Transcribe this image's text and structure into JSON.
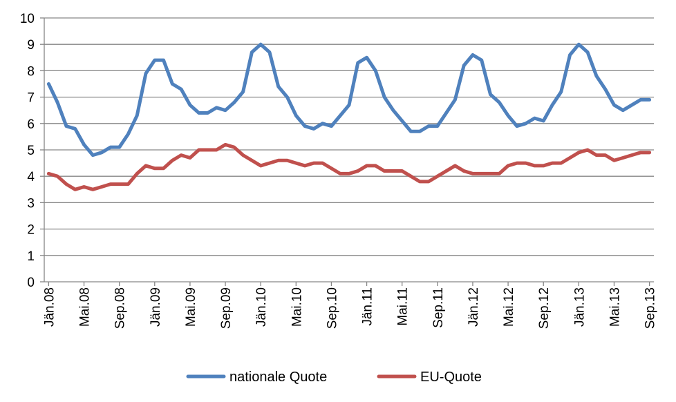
{
  "chart_data": {
    "type": "line",
    "title": "",
    "xlabel": "",
    "ylabel": "",
    "ylim": [
      0,
      10
    ],
    "yticks": [
      0,
      1,
      2,
      3,
      4,
      5,
      6,
      7,
      8,
      9,
      10
    ],
    "grid": true,
    "legend_position": "bottom",
    "x_tick_labels": [
      "Jän.08",
      "Mai.08",
      "Sep.08",
      "Jän.09",
      "Mai.09",
      "Sep.09",
      "Jän.10",
      "Mai.10",
      "Sep.10",
      "Jän.11",
      "Mai.11",
      "Sep.11",
      "Jän.12",
      "Mai.12",
      "Sep.12",
      "Jän.13",
      "Mai.13",
      "Sep.13"
    ],
    "x": [
      "2008-01",
      "2008-02",
      "2008-03",
      "2008-04",
      "2008-05",
      "2008-06",
      "2008-07",
      "2008-08",
      "2008-09",
      "2008-10",
      "2008-11",
      "2008-12",
      "2009-01",
      "2009-02",
      "2009-03",
      "2009-04",
      "2009-05",
      "2009-06",
      "2009-07",
      "2009-08",
      "2009-09",
      "2009-10",
      "2009-11",
      "2009-12",
      "2010-01",
      "2010-02",
      "2010-03",
      "2010-04",
      "2010-05",
      "2010-06",
      "2010-07",
      "2010-08",
      "2010-09",
      "2010-10",
      "2010-11",
      "2010-12",
      "2011-01",
      "2011-02",
      "2011-03",
      "2011-04",
      "2011-05",
      "2011-06",
      "2011-07",
      "2011-08",
      "2011-09",
      "2011-10",
      "2011-11",
      "2011-12",
      "2012-01",
      "2012-02",
      "2012-03",
      "2012-04",
      "2012-05",
      "2012-06",
      "2012-07",
      "2012-08",
      "2012-09",
      "2012-10",
      "2012-11",
      "2012-12",
      "2013-01",
      "2013-02",
      "2013-03",
      "2013-04",
      "2013-05",
      "2013-06",
      "2013-07",
      "2013-08",
      "2013-09"
    ],
    "series": [
      {
        "name": "nationale Quote",
        "color": "#4F81BD",
        "values": [
          7.5,
          6.8,
          5.9,
          5.8,
          5.2,
          4.8,
          4.9,
          5.1,
          5.1,
          5.6,
          6.3,
          7.9,
          8.4,
          8.4,
          7.5,
          7.3,
          6.7,
          6.4,
          6.4,
          6.6,
          6.5,
          6.8,
          7.2,
          8.7,
          9.0,
          8.7,
          7.4,
          7.0,
          6.3,
          5.9,
          5.8,
          6.0,
          5.9,
          6.3,
          6.7,
          8.3,
          8.5,
          8.0,
          7.0,
          6.5,
          6.1,
          5.7,
          5.7,
          5.9,
          5.9,
          6.4,
          6.9,
          8.2,
          8.6,
          8.4,
          7.1,
          6.8,
          6.3,
          5.9,
          6.0,
          6.2,
          6.1,
          6.7,
          7.2,
          8.6,
          9.0,
          8.7,
          7.8,
          7.3,
          6.7,
          6.5,
          6.7,
          6.9,
          6.9
        ]
      },
      {
        "name": "EU-Quote",
        "color": "#C0504D",
        "values": [
          4.1,
          4.0,
          3.7,
          3.5,
          3.6,
          3.5,
          3.6,
          3.7,
          3.7,
          3.7,
          4.1,
          4.4,
          4.3,
          4.3,
          4.6,
          4.8,
          4.7,
          5.0,
          5.0,
          5.0,
          5.2,
          5.1,
          4.8,
          4.6,
          4.4,
          4.5,
          4.6,
          4.6,
          4.5,
          4.4,
          4.5,
          4.5,
          4.3,
          4.1,
          4.1,
          4.2,
          4.4,
          4.4,
          4.2,
          4.2,
          4.2,
          4.0,
          3.8,
          3.8,
          4.0,
          4.2,
          4.4,
          4.2,
          4.1,
          4.1,
          4.1,
          4.1,
          4.4,
          4.5,
          4.5,
          4.4,
          4.4,
          4.5,
          4.5,
          4.7,
          4.9,
          5.0,
          4.8,
          4.8,
          4.6,
          4.7,
          4.8,
          4.9,
          4.9
        ]
      }
    ]
  }
}
